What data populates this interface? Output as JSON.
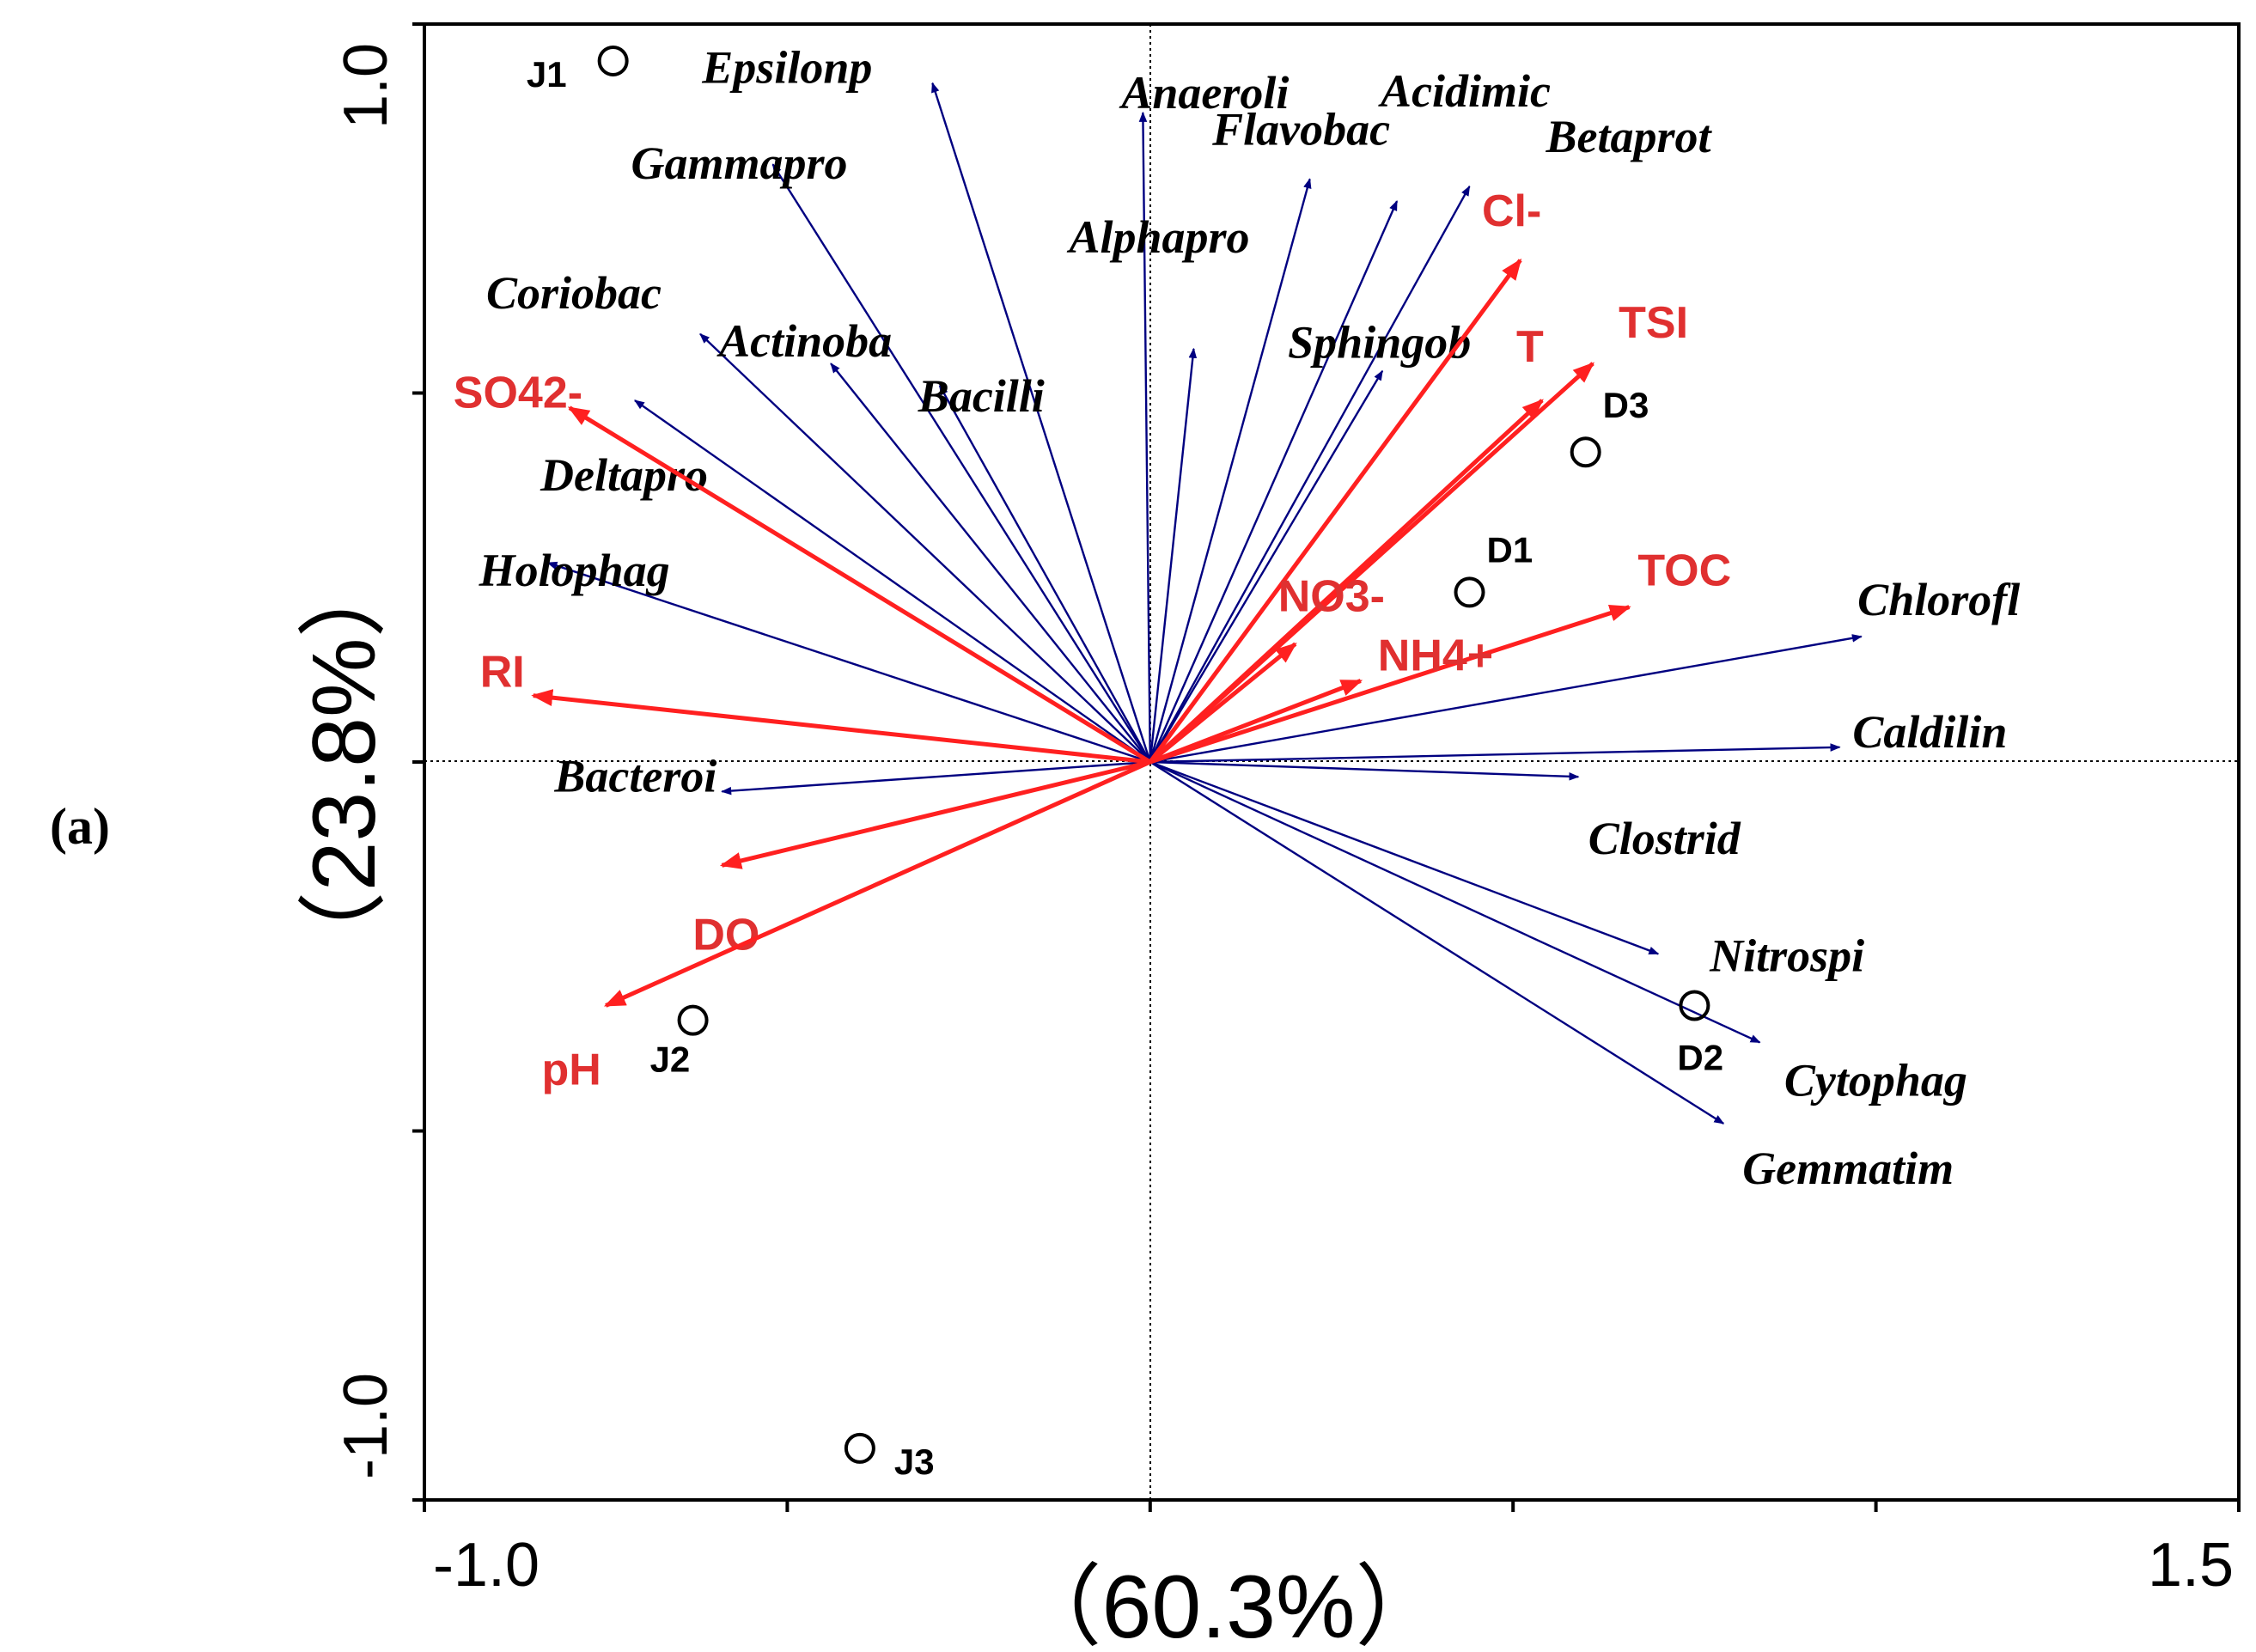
{
  "panel_label": "(a)",
  "colors": {
    "species": "#000080",
    "environment": "#ff2020",
    "environment_text": "#e03030",
    "axis": "#000000"
  },
  "chart_data": {
    "type": "scatter",
    "subtype": "RDA biplot",
    "title": "",
    "xlabel": "（60.3%）",
    "ylabel": "（23.8%）",
    "xlim": [
      -1.0,
      1.5
    ],
    "ylim": [
      -1.0,
      1.0
    ],
    "x_tick_labels": [
      {
        "value": -1.0,
        "label": "-1.0"
      },
      {
        "value": 1.5,
        "label": "1.5"
      }
    ],
    "y_tick_labels": [
      {
        "value": 1.0,
        "label": "1.0"
      },
      {
        "value": -1.0,
        "label": "-1.0"
      }
    ],
    "x_ticks": [
      -1.0,
      -0.5,
      0.0,
      0.5,
      1.0,
      1.5
    ],
    "y_ticks": [
      -1.0,
      -0.5,
      0.0,
      0.5,
      1.0
    ],
    "reference_lines": {
      "x": 0,
      "y": 0
    },
    "species_arrows": [
      {
        "name": "Epsilonp",
        "x": -0.3,
        "y": 0.92
      },
      {
        "name": "Anaeroli",
        "x": -0.01,
        "y": 0.88
      },
      {
        "name": "Gammapro",
        "x": -0.52,
        "y": 0.81
      },
      {
        "name": "Flavobac",
        "x": 0.22,
        "y": 0.79
      },
      {
        "name": "Acidimic",
        "x": 0.34,
        "y": 0.76
      },
      {
        "name": "Betaprot",
        "x": 0.44,
        "y": 0.78
      },
      {
        "name": "Alphapro",
        "x": 0.06,
        "y": 0.56
      },
      {
        "name": "Coriobac",
        "x": -0.62,
        "y": 0.58
      },
      {
        "name": "Actinoba",
        "x": -0.44,
        "y": 0.54
      },
      {
        "name": "Bacilli",
        "x": -0.29,
        "y": 0.51
      },
      {
        "name": "Sphingob",
        "x": 0.32,
        "y": 0.53
      },
      {
        "name": "Deltapro",
        "x": -0.71,
        "y": 0.49
      },
      {
        "name": "Holophag",
        "x": -0.83,
        "y": 0.27
      },
      {
        "name": "Bacteroi",
        "x": -0.59,
        "y": -0.04
      },
      {
        "name": "Chlorofl",
        "x": 0.98,
        "y": 0.17
      },
      {
        "name": "Caldilin",
        "x": 0.95,
        "y": 0.02
      },
      {
        "name": "Clostrid",
        "x": 0.59,
        "y": -0.02
      },
      {
        "name": "Nitrospi",
        "x": 0.7,
        "y": -0.26
      },
      {
        "name": "Cytophag",
        "x": 0.84,
        "y": -0.38
      },
      {
        "name": "Gemmatim",
        "x": 0.79,
        "y": -0.49
      }
    ],
    "environment_arrows": [
      {
        "name": "Cl-",
        "x": 0.51,
        "y": 0.68
      },
      {
        "name": "TSI",
        "x": 0.61,
        "y": 0.54
      },
      {
        "name": "T",
        "x": 0.54,
        "y": 0.49
      },
      {
        "name": "TOC",
        "x": 0.66,
        "y": 0.21
      },
      {
        "name": "NO3-",
        "x": 0.2,
        "y": 0.16
      },
      {
        "name": "NH4+",
        "x": 0.29,
        "y": 0.11
      },
      {
        "name": "SO42-",
        "x": -0.8,
        "y": 0.48
      },
      {
        "name": "RI",
        "x": -0.85,
        "y": 0.09
      },
      {
        "name": "DO",
        "x": -0.59,
        "y": -0.14
      },
      {
        "name": "pH",
        "x": -0.75,
        "y": -0.33
      }
    ],
    "sites": [
      {
        "name": "J1",
        "x": -0.74,
        "y": 0.95
      },
      {
        "name": "J2",
        "x": -0.63,
        "y": -0.35
      },
      {
        "name": "J3",
        "x": -0.4,
        "y": -0.93
      },
      {
        "name": "D1",
        "x": 0.44,
        "y": 0.23
      },
      {
        "name": "D2",
        "x": 0.75,
        "y": -0.33
      },
      {
        "name": "D3",
        "x": 0.6,
        "y": 0.42
      }
    ]
  }
}
